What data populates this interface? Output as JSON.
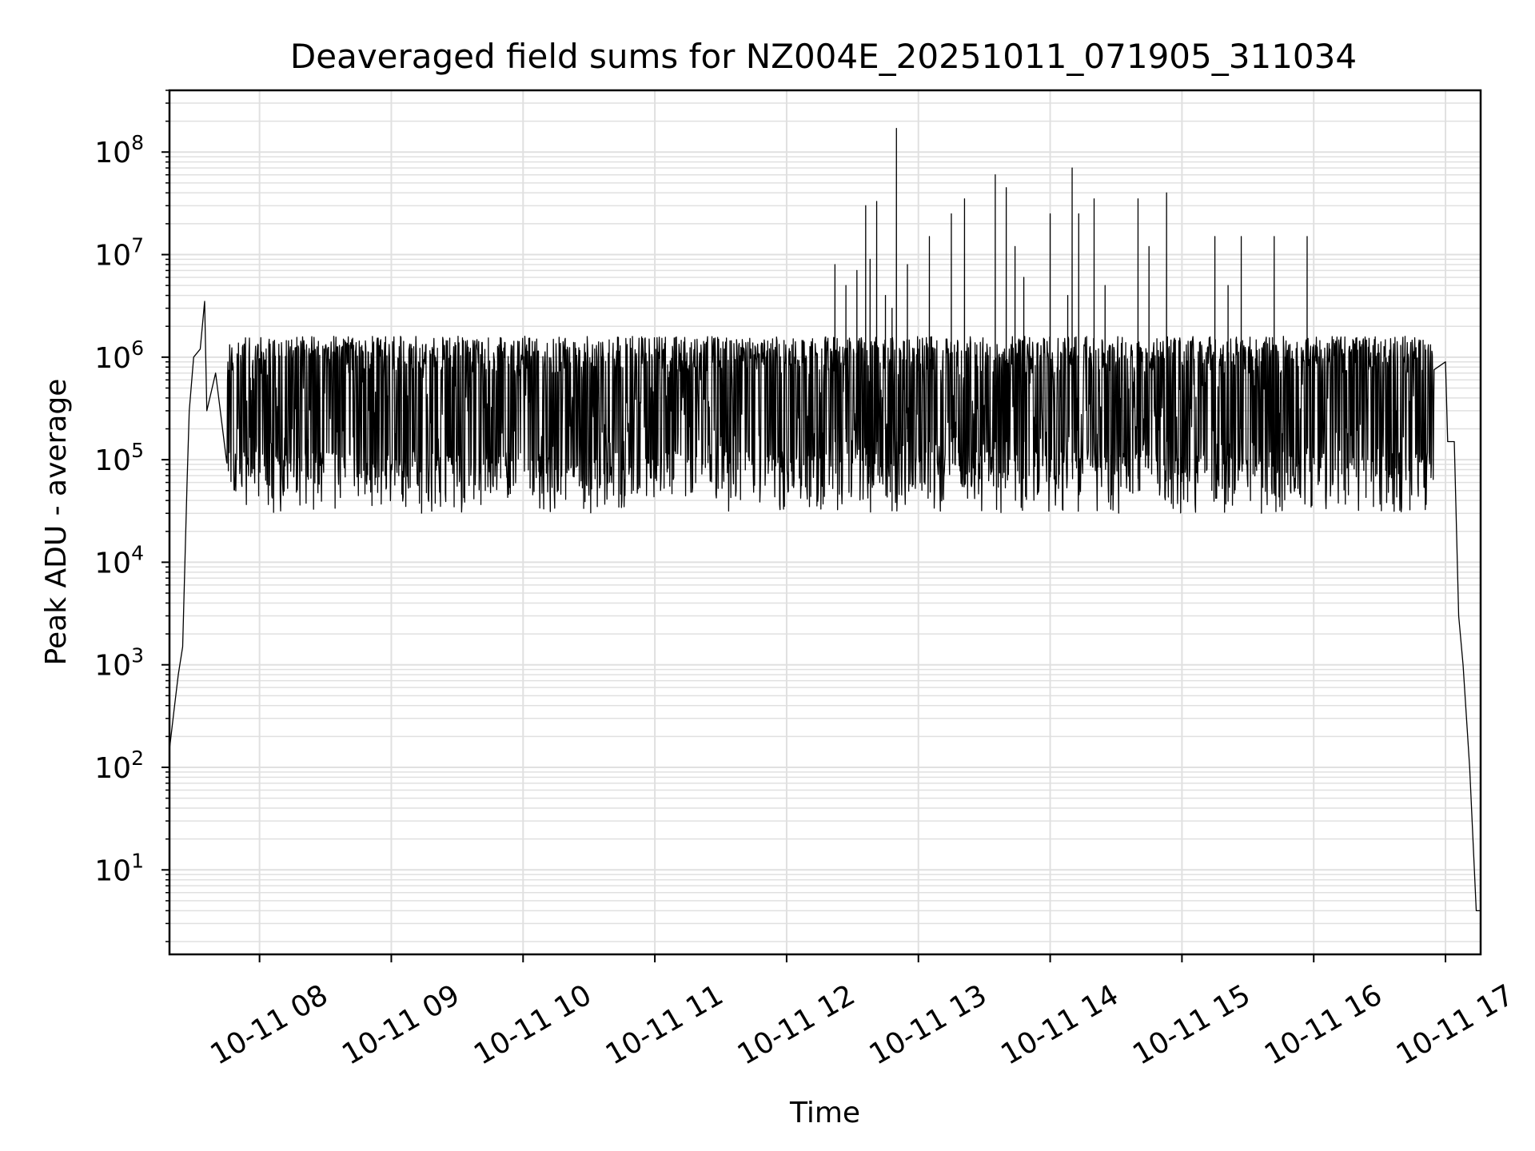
{
  "chart_data": {
    "type": "line",
    "title": "Deaveraged field sums for NZ004E_20251011_071905_311034",
    "xlabel": "Time",
    "ylabel": "Peak ADU - average",
    "yscale": "log",
    "xlim": [
      "2025-10-11 07:19",
      "2025-10-11 17:16"
    ],
    "ylim": [
      1.5,
      400000000.0
    ],
    "x_ticks": [
      {
        "value": "2025-10-11 08:00",
        "label": "10-11 08"
      },
      {
        "value": "2025-10-11 09:00",
        "label": "10-11 09"
      },
      {
        "value": "2025-10-11 10:00",
        "label": "10-11 10"
      },
      {
        "value": "2025-10-11 11:00",
        "label": "10-11 11"
      },
      {
        "value": "2025-10-11 12:00",
        "label": "10-11 12"
      },
      {
        "value": "2025-10-11 13:00",
        "label": "10-11 13"
      },
      {
        "value": "2025-10-11 14:00",
        "label": "10-11 14"
      },
      {
        "value": "2025-10-11 15:00",
        "label": "10-11 15"
      },
      {
        "value": "2025-10-11 16:00",
        "label": "10-11 16"
      },
      {
        "value": "2025-10-11 17:00",
        "label": "10-11 17"
      }
    ],
    "y_ticks": [
      {
        "value": 10,
        "base": "10",
        "exp": "1"
      },
      {
        "value": 100,
        "base": "10",
        "exp": "2"
      },
      {
        "value": 1000,
        "base": "10",
        "exp": "3"
      },
      {
        "value": 10000,
        "base": "10",
        "exp": "4"
      },
      {
        "value": 100000,
        "base": "10",
        "exp": "5"
      },
      {
        "value": 1000000,
        "base": "10",
        "exp": "6"
      },
      {
        "value": 10000000,
        "base": "10",
        "exp": "7"
      },
      {
        "value": 100000000,
        "base": "10",
        "exp": "8"
      }
    ],
    "grid": true,
    "legend": "none",
    "line_color": "#000000",
    "grid_color": "#e0e0e0",
    "series": [
      {
        "values_profile": [
          [
            "2025-10-11 07:19",
            150
          ],
          [
            "2025-10-11 07:21",
            350
          ],
          [
            "2025-10-11 07:23",
            800
          ],
          [
            "2025-10-11 07:25",
            1500
          ],
          [
            "2025-10-11 07:27",
            60000
          ],
          [
            "2025-10-11 07:28",
            300000
          ],
          [
            "2025-10-11 07:30",
            1000000
          ],
          [
            "2025-10-11 07:33",
            1200000
          ],
          [
            "2025-10-11 07:35",
            3500000
          ],
          [
            "2025-10-11 07:36",
            300000
          ],
          [
            "2025-10-11 07:40",
            700000
          ],
          [
            "2025-10-11 07:45",
            1500000
          ],
          [
            "2025-10-11 08:00",
            80000
          ],
          [
            "2025-10-11 08:10",
            30000
          ],
          [
            "2025-10-11 09:00",
            40000
          ],
          [
            "2025-10-11 10:00",
            45000
          ],
          [
            "2025-10-11 11:00",
            50000
          ],
          [
            "2025-10-11 12:00",
            45000
          ],
          [
            "2025-10-11 12:50",
            170000000
          ],
          [
            "2025-10-11 13:00",
            50000
          ],
          [
            "2025-10-11 14:10",
            70000000
          ],
          [
            "2025-10-11 15:00",
            55000
          ],
          [
            "2025-10-11 16:00",
            60000
          ],
          [
            "2025-10-11 16:50",
            3300000
          ],
          [
            "2025-10-11 17:00",
            900000
          ],
          [
            "2025-10-11 17:01",
            150000
          ],
          [
            "2025-10-11 17:04",
            150000
          ],
          [
            "2025-10-11 17:06",
            3000
          ],
          [
            "2025-10-11 17:08",
            1000
          ],
          [
            "2025-10-11 17:11",
            100
          ],
          [
            "2025-10-11 17:14",
            4
          ],
          [
            "2025-10-11 17:16",
            4
          ]
        ],
        "spikes": [
          [
            "2025-10-11 12:22",
            8000000
          ],
          [
            "2025-10-11 12:27",
            5000000
          ],
          [
            "2025-10-11 12:32",
            7000000
          ],
          [
            "2025-10-11 12:36",
            30000000
          ],
          [
            "2025-10-11 12:38",
            9000000
          ],
          [
            "2025-10-11 12:41",
            33000000
          ],
          [
            "2025-10-11 12:45",
            4000000
          ],
          [
            "2025-10-11 12:48",
            3000000
          ],
          [
            "2025-10-11 12:50",
            170000000
          ],
          [
            "2025-10-11 12:55",
            8000000
          ],
          [
            "2025-10-11 13:05",
            15000000
          ],
          [
            "2025-10-11 13:15",
            25000000
          ],
          [
            "2025-10-11 13:21",
            35000000
          ],
          [
            "2025-10-11 13:35",
            60000000
          ],
          [
            "2025-10-11 13:40",
            45000000
          ],
          [
            "2025-10-11 13:44",
            12000000
          ],
          [
            "2025-10-11 13:48",
            6000000
          ],
          [
            "2025-10-11 14:00",
            25000000
          ],
          [
            "2025-10-11 14:08",
            4000000
          ],
          [
            "2025-10-11 14:10",
            70000000
          ],
          [
            "2025-10-11 14:13",
            25000000
          ],
          [
            "2025-10-11 14:20",
            35000000
          ],
          [
            "2025-10-11 14:25",
            5000000
          ],
          [
            "2025-10-11 14:40",
            35000000
          ],
          [
            "2025-10-11 14:45",
            12000000
          ],
          [
            "2025-10-11 14:53",
            40000000
          ],
          [
            "2025-10-11 15:15",
            15000000
          ],
          [
            "2025-10-11 15:21",
            5000000
          ],
          [
            "2025-10-11 15:27",
            15000000
          ],
          [
            "2025-10-11 15:42",
            15000000
          ],
          [
            "2025-10-11 15:57",
            15000000
          ]
        ]
      }
    ]
  }
}
